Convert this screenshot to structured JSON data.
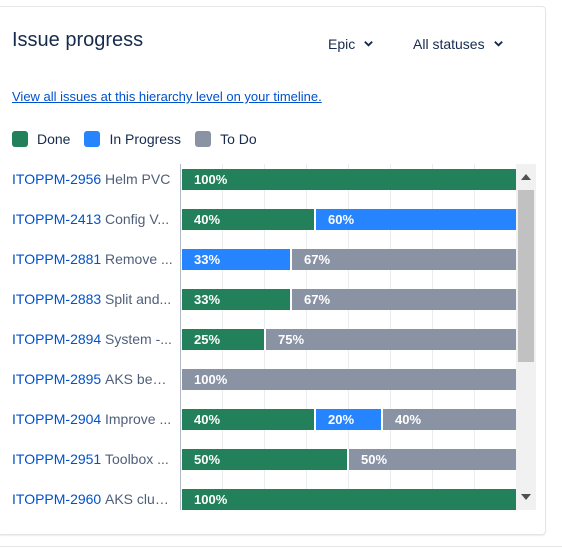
{
  "header": {
    "title": "Issue progress"
  },
  "filters": {
    "epic_label": "Epic",
    "status_label": "All statuses"
  },
  "timeline_link": "View all issues at this hierarchy level on your timeline.",
  "legend": [
    {
      "label": "Done",
      "color": "#22815a"
    },
    {
      "label": "In Progress",
      "color": "#2684ff"
    },
    {
      "label": "To Do",
      "color": "#8993a4"
    }
  ],
  "issues": [
    {
      "key": "ITOPPM-2956",
      "name": "Helm PVC",
      "done": 100,
      "in_progress": 0,
      "todo": 0,
      "labels": [
        "100%"
      ]
    },
    {
      "key": "ITOPPM-2413",
      "name": "Config V...",
      "done": 40,
      "in_progress": 60,
      "todo": 0,
      "labels": [
        "40%",
        "60%"
      ]
    },
    {
      "key": "ITOPPM-2881",
      "name": "Remove ...",
      "done": 0,
      "in_progress": 33,
      "todo": 67,
      "labels": [
        "33%",
        "67%"
      ]
    },
    {
      "key": "ITOPPM-2883",
      "name": "Split and...",
      "done": 33,
      "in_progress": 0,
      "todo": 67,
      "labels": [
        "33%",
        "67%"
      ]
    },
    {
      "key": "ITOPPM-2894",
      "name": "System -...",
      "done": 25,
      "in_progress": 0,
      "todo": 75,
      "labels": [
        "25%",
        "75%"
      ]
    },
    {
      "key": "ITOPPM-2895",
      "name": "AKS best...",
      "done": 0,
      "in_progress": 0,
      "todo": 100,
      "labels": [
        "100%"
      ]
    },
    {
      "key": "ITOPPM-2904",
      "name": "Improve ...",
      "done": 40,
      "in_progress": 20,
      "todo": 40,
      "labels": [
        "40%",
        "20%",
        "40%"
      ]
    },
    {
      "key": "ITOPPM-2951",
      "name": "Toolbox ...",
      "done": 50,
      "in_progress": 0,
      "todo": 50,
      "labels": [
        "50%",
        "50%"
      ]
    },
    {
      "key": "ITOPPM-2960",
      "name": "AKS clus...",
      "done": 100,
      "in_progress": 0,
      "todo": 0,
      "labels": [
        "100%"
      ]
    }
  ]
}
